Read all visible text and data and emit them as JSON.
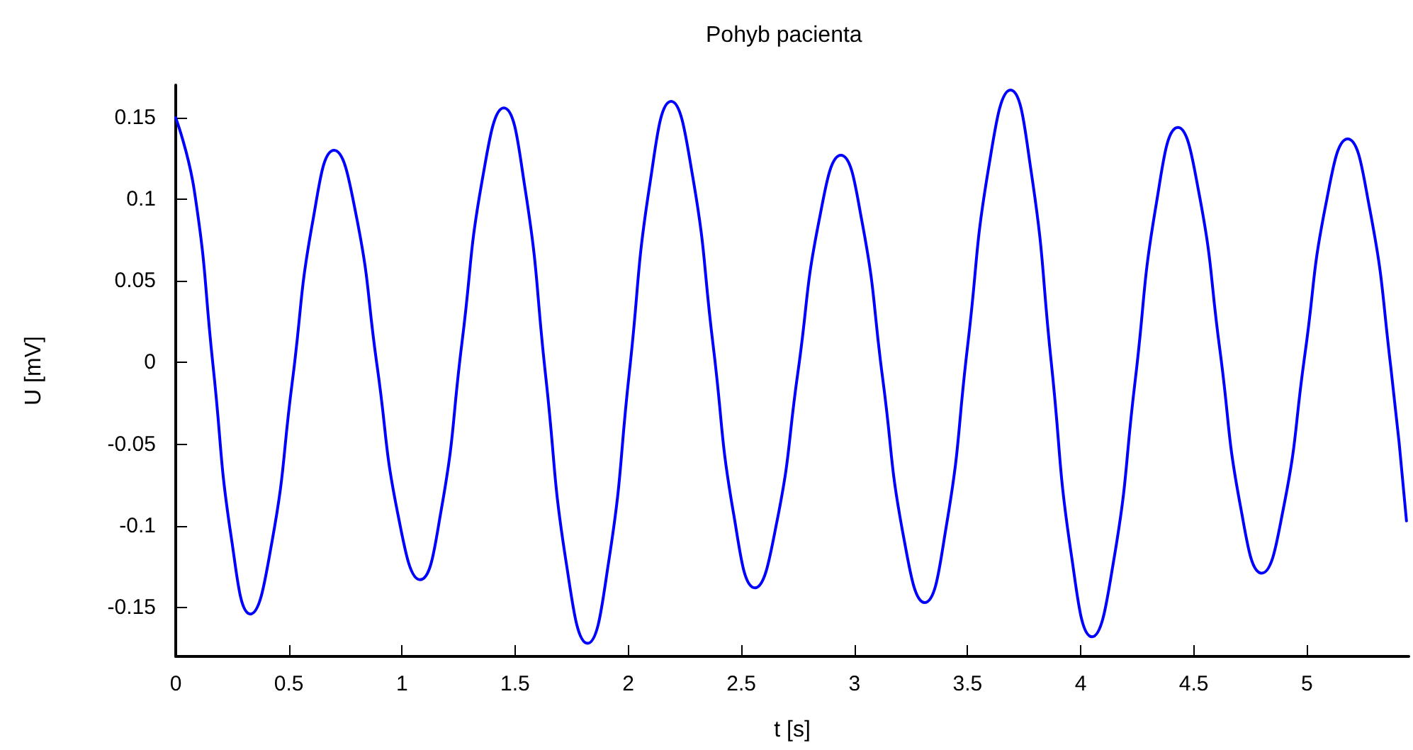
{
  "chart_data": {
    "type": "line",
    "title": "Pohyb pacienta",
    "xlabel": "t [s]",
    "ylabel": "U [mV]",
    "x": [
      0,
      0.0825,
      0.165,
      0.2475,
      0.33,
      0.4225,
      0.515,
      0.6075,
      0.7,
      0.795,
      0.89,
      0.985,
      1.08,
      1.1725,
      1.265,
      1.3575,
      1.45,
      1.5425,
      1.635,
      1.7275,
      1.82,
      1.9125,
      2.005,
      2.0975,
      2.19,
      2.2825,
      2.375,
      2.4675,
      2.56,
      2.655,
      2.75,
      2.845,
      2.94,
      3.0325,
      3.125,
      3.2175,
      3.31,
      3.405,
      3.5,
      3.595,
      3.69,
      3.78,
      3.87,
      3.96,
      4.05,
      4.145,
      4.24,
      4.335,
      4.43,
      4.5225,
      4.615,
      4.7075,
      4.8,
      4.895,
      4.99,
      5.085,
      5.18,
      5.275,
      5.37,
      5.44
    ],
    "series": [
      {
        "color": "#0000ff",
        "values": [
          0.15,
          0.105,
          -0.002,
          -0.109,
          -0.154,
          -0.112,
          -0.012,
          0.088,
          0.13,
          0.092,
          -0.002,
          -0.095,
          -0.133,
          -0.091,
          0.012,
          0.114,
          0.156,
          0.108,
          -0.008,
          -0.124,
          -0.172,
          -0.123,
          -0.006,
          0.111,
          0.16,
          0.116,
          0.011,
          -0.094,
          -0.138,
          -0.099,
          -0.006,
          0.088,
          0.127,
          0.087,
          -0.01,
          -0.107,
          -0.147,
          -0.101,
          0.01,
          0.121,
          0.167,
          0.118,
          0,
          -0.119,
          -0.168,
          -0.122,
          -0.012,
          0.098,
          0.144,
          0.104,
          0.008,
          -0.089,
          -0.129,
          -0.09,
          0.004,
          0.098,
          0.137,
          0.096,
          -0.002,
          -0.097
        ]
      }
    ],
    "xlim": [
      0,
      5.45
    ],
    "ylim": [
      -0.18,
      0.17
    ],
    "xticks": [
      0,
      0.5,
      1,
      1.5,
      2,
      2.5,
      3,
      3.5,
      4,
      4.5,
      5
    ],
    "yticks": [
      -0.15,
      -0.1,
      -0.05,
      0,
      0.05,
      0.1,
      0.15
    ],
    "grid": false,
    "marker": "none",
    "line_style": "solid"
  }
}
